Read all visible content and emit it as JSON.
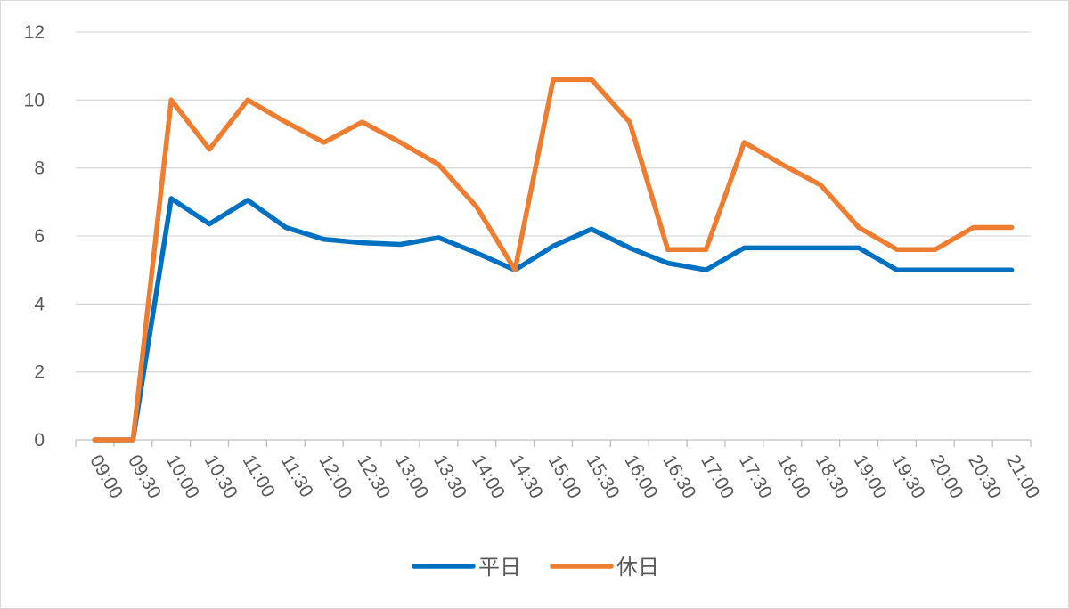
{
  "chart_data": {
    "type": "line",
    "title": "",
    "xlabel": "",
    "ylabel": "",
    "ylim": [
      0,
      12
    ],
    "yticks": [
      0,
      2,
      4,
      6,
      8,
      10,
      12
    ],
    "grid": "horizontal",
    "legend_position": "bottom",
    "x": [
      "09:00",
      "09:30",
      "10:00",
      "10:30",
      "11:00",
      "11:30",
      "12:00",
      "12:30",
      "13:00",
      "13:30",
      "14:00",
      "14:30",
      "15:00",
      "15:30",
      "16:00",
      "16:30",
      "17:00",
      "17:30",
      "18:00",
      "18:30",
      "19:00",
      "19:30",
      "20:00",
      "20:30",
      "21:00"
    ],
    "series": [
      {
        "name": "平日",
        "color": "#0070C0",
        "values": [
          0,
          0,
          7.1,
          6.35,
          7.05,
          6.25,
          5.9,
          5.8,
          5.75,
          5.95,
          5.5,
          5.0,
          5.7,
          6.2,
          5.65,
          5.2,
          5.0,
          5.65,
          5.65,
          5.65,
          5.65,
          5.0,
          5.0,
          5.0,
          5.0
        ]
      },
      {
        "name": "休日",
        "color": "#ED7D31",
        "values": [
          0,
          0,
          10.0,
          8.55,
          10.0,
          9.35,
          8.75,
          9.35,
          8.75,
          8.1,
          6.85,
          5.0,
          10.6,
          10.6,
          9.35,
          5.6,
          5.6,
          8.75,
          8.1,
          7.5,
          6.25,
          5.6,
          5.6,
          6.25,
          6.25
        ]
      }
    ]
  }
}
